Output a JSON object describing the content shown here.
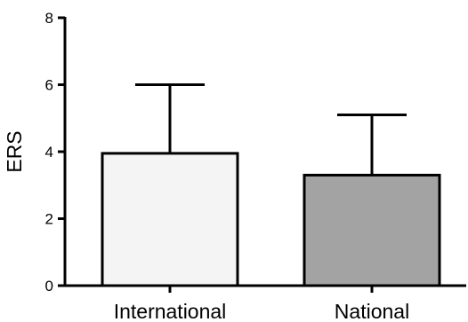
{
  "chart_data": {
    "type": "bar",
    "categories": [
      "International",
      "National"
    ],
    "values": [
      3.95,
      3.3
    ],
    "errors": [
      2.05,
      1.8
    ],
    "xlabel": "",
    "ylabel": "ERS",
    "ylim": [
      0,
      8
    ],
    "yticks": [
      0,
      2,
      4,
      6,
      8
    ],
    "bar_colors": [
      "#f4f4f4",
      "#a3a3a3"
    ],
    "grid": false
  }
}
